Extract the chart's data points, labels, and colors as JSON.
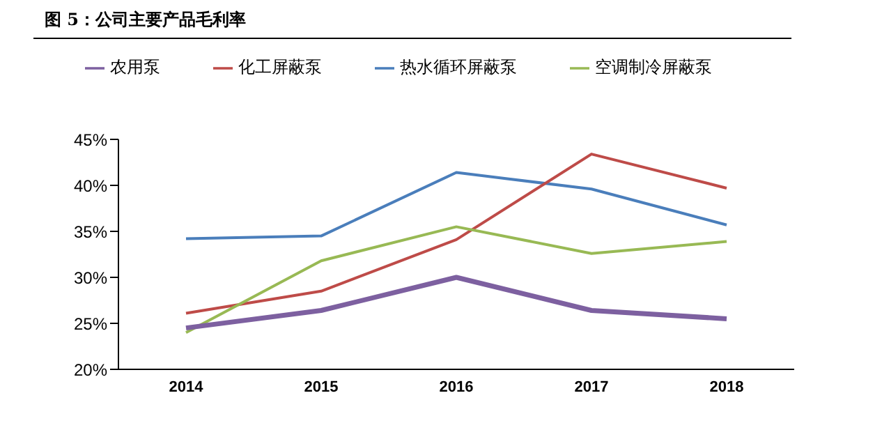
{
  "chart_data": {
    "type": "line",
    "title": "图 5：公司主要产品毛利率",
    "categories": [
      "2014",
      "2015",
      "2016",
      "2017",
      "2018"
    ],
    "series": [
      {
        "name": "热水循环屏蔽泵",
        "color": "#4a7ebb",
        "values": [
          34.2,
          34.5,
          41.4,
          39.6,
          35.7
        ]
      },
      {
        "name": "化工屏蔽泵",
        "color": "#be4b48",
        "values": [
          26.1,
          28.5,
          34.1,
          43.4,
          39.7
        ]
      },
      {
        "name": "空调制冷屏蔽泵",
        "color": "#98b954",
        "values": [
          24.0,
          31.8,
          35.5,
          32.6,
          33.9
        ]
      },
      {
        "name": "农用泵",
        "color": "#7d60a0",
        "values": [
          24.5,
          26.4,
          30.0,
          26.4,
          25.5
        ]
      }
    ],
    "ylim": [
      20,
      45
    ],
    "yticks": [
      {
        "value": 20,
        "label": "20%"
      },
      {
        "value": 25,
        "label": "25%"
      },
      {
        "value": 30,
        "label": "30%"
      },
      {
        "value": 35,
        "label": "35%"
      },
      {
        "value": 40,
        "label": "40%"
      },
      {
        "value": 45,
        "label": "45%"
      }
    ],
    "grid": false,
    "legend": "top",
    "marker": "none"
  }
}
